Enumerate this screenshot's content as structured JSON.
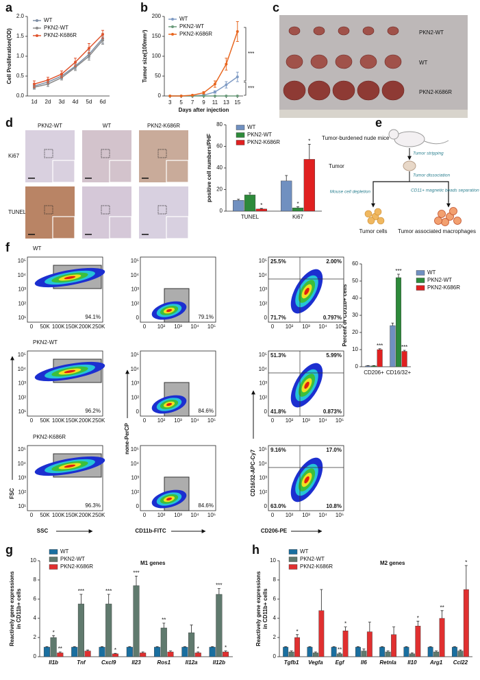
{
  "panels": {
    "letters": [
      "a",
      "b",
      "c",
      "d",
      "e",
      "f",
      "g",
      "h"
    ],
    "c": {
      "labels": [
        "PKN2-WT",
        "WT",
        "PKN2-K686R"
      ]
    },
    "d": {
      "columns": [
        "PKN2-WT",
        "WT",
        "PKN2-K686R"
      ],
      "rows": [
        "Ki67",
        "TUNEL"
      ]
    },
    "e": {
      "mice": "Tumor-burdened nude mice",
      "stripping": "Tumor stripping",
      "tumor": "Tumor",
      "dissociation": "Tumor  dissociation",
      "depletion": "Mouse cell depletion",
      "separation": "CD11+ magnetic beads separation",
      "tumor_cells": "Tumor cells",
      "macrophages": "Tumor associated macrophages"
    },
    "f": {
      "rows": [
        "WT",
        "PKN2-WT",
        "PKN2-K686R"
      ],
      "gate1": [
        "94.1%",
        "96.2%",
        "96.3%"
      ],
      "gate2": [
        "79.1%",
        "84.6%",
        "84.6%"
      ],
      "quadrants": [
        [
          "25.5%",
          "2.00%",
          "71.7%",
          "0.797%"
        ],
        [
          "51.3%",
          "5.99%",
          "41.8%",
          "0.873%"
        ],
        [
          "9.16%",
          "17.0%",
          "63.0%",
          "10.8%"
        ]
      ],
      "axes": {
        "fsc": "FSC",
        "ssc": "SSC",
        "percp": "none-PerCP",
        "fitc": "CD11b-FITC",
        "apc": "CD16/32-APC-Cy7",
        "pe": "CD206-PE"
      },
      "ssc_ticks": [
        "0",
        "50K",
        "100K",
        "150K",
        "200K",
        "250K"
      ],
      "fsc_ticks": [
        "10¹",
        "10²",
        "10³",
        "10⁴",
        "10⁵"
      ],
      "log_ticks": [
        "0",
        "10²",
        "10³",
        "10⁴",
        "10⁵"
      ]
    }
  },
  "chart_data": [
    {
      "type": "line",
      "ylabel": "Cell Proliferation(OD)",
      "categories": [
        "1d",
        "2d",
        "3d",
        "4d",
        "5d",
        "6d"
      ],
      "ylim": [
        0,
        2
      ],
      "yticks": [
        {
          "value": 0,
          "label": "0.0"
        },
        0.5,
        {
          "value": 1,
          "label": "1.0"
        },
        1.5,
        {
          "value": 2,
          "label": "2.0"
        }
      ],
      "series": [
        {
          "name": "WT",
          "color": "#7f8fa6",
          "values": [
            0.25,
            0.35,
            0.5,
            0.75,
            1.05,
            1.45
          ],
          "errors": [
            0.06,
            0.06,
            0.07,
            0.08,
            0.1,
            0.12
          ]
        },
        {
          "name": "PKN2-WT",
          "color": "#8a8a8a",
          "values": [
            0.22,
            0.3,
            0.46,
            0.72,
            1.0,
            1.4
          ],
          "errors": [
            0.05,
            0.06,
            0.06,
            0.08,
            0.1,
            0.1
          ]
        },
        {
          "name": "PKN2-K686R",
          "color": "#e0542e",
          "values": [
            0.3,
            0.4,
            0.55,
            0.85,
            1.2,
            1.55
          ],
          "errors": [
            0.08,
            0.07,
            0.08,
            0.1,
            0.12,
            0.1
          ]
        }
      ]
    },
    {
      "type": "line",
      "ylabel": "Tumor size(100mm³)",
      "xlabel": "Days after injection",
      "x": [
        3,
        5,
        7,
        9,
        11,
        13,
        15
      ],
      "xlim": [
        2,
        16
      ],
      "xticks": [
        3,
        5,
        7,
        9,
        11,
        13,
        15
      ],
      "ylim": [
        0,
        200
      ],
      "yticks": [
        0,
        50,
        100,
        150,
        200
      ],
      "annotations": [
        "***",
        "***"
      ],
      "series": [
        {
          "name": "WT",
          "color": "#7f9bc4",
          "values": [
            0,
            0,
            0,
            2,
            10,
            28,
            48
          ],
          "errors": [
            0,
            0,
            0,
            1,
            3,
            8,
            12
          ]
        },
        {
          "name": "PKN2-WT",
          "color": "#6a9a7a",
          "values": [
            0,
            0,
            0,
            0,
            0,
            0,
            0
          ],
          "errors": [
            0,
            0,
            0,
            0,
            0,
            0,
            0
          ]
        },
        {
          "name": "PKN2-K686R",
          "color": "#e8661f",
          "values": [
            0,
            0,
            2,
            8,
            30,
            80,
            162
          ],
          "errors": [
            0,
            0,
            1,
            3,
            8,
            15,
            25
          ]
        }
      ]
    },
    {
      "type": "bar",
      "ylabel": "positive cell numbers/PHF",
      "categories": [
        "TUNEL",
        "Ki67"
      ],
      "ylim": [
        0,
        80
      ],
      "yticks": [
        0,
        20,
        40,
        60,
        80
      ],
      "series": [
        {
          "name": "WT",
          "color": "#7090c0",
          "values": [
            10,
            28
          ],
          "errors": [
            1,
            5
          ]
        },
        {
          "name": "PKN2-WT",
          "color": "#2d8a3a",
          "values": [
            15,
            3
          ],
          "errors": [
            2,
            1
          ],
          "stars": [
            null,
            "*"
          ]
        },
        {
          "name": "PKN2-K686R",
          "color": "#e02020",
          "values": [
            2,
            48
          ],
          "errors": [
            0.5,
            14
          ],
          "stars": [
            "*",
            "*"
          ]
        }
      ]
    },
    {
      "type": "bar",
      "ylabel": "Percent of CD11b+ cells",
      "categories": [
        "CD206+",
        "CD16/32+"
      ],
      "ylim": [
        0,
        60
      ],
      "yticks": [
        0,
        10,
        20,
        30,
        40,
        50,
        60
      ],
      "series": [
        {
          "name": "WT",
          "color": "#7090c0",
          "values": [
            0.5,
            24
          ],
          "errors": [
            0.2,
            1.5
          ]
        },
        {
          "name": "PKN2-WT",
          "color": "#2d8a3a",
          "values": [
            0.5,
            52
          ],
          "errors": [
            0.2,
            2
          ],
          "stars": [
            null,
            "***"
          ]
        },
        {
          "name": "PKN2-K686R",
          "color": "#e02020",
          "values": [
            10,
            9
          ],
          "errors": [
            0.5,
            0.6
          ],
          "stars": [
            "***",
            "***"
          ]
        }
      ]
    },
    {
      "type": "bar",
      "title": "M1 genes",
      "ylabel": [
        "Reactively gene expressions",
        "in CD11b+ cells"
      ],
      "categories": [
        "Il1b",
        "Tnf",
        "Cxcl9",
        "Il23",
        "Ros1",
        "Il12a",
        "Il12b"
      ],
      "ylim": [
        0,
        10
      ],
      "yticks": [
        0,
        2,
        4,
        6,
        8,
        10
      ],
      "series": [
        {
          "name": "WT",
          "color": "#1a6fa0",
          "values": [
            1,
            1,
            1,
            1,
            1,
            1,
            1
          ],
          "errors": [
            0.05,
            0.05,
            0.05,
            0.05,
            0.05,
            0.05,
            0.05
          ]
        },
        {
          "name": "PKN2-WT",
          "color": "#607a6e",
          "values": [
            2,
            5.5,
            5.5,
            7.4,
            3,
            2.5,
            6.5
          ],
          "errors": [
            0.2,
            1,
            1,
            1,
            0.5,
            0.8,
            0.6
          ],
          "stars": [
            "*",
            "***",
            "***",
            "***",
            "**",
            null,
            "***"
          ]
        },
        {
          "name": "PKN2-K686R",
          "color": "#e03030",
          "values": [
            0.4,
            0.6,
            0.3,
            0.4,
            0.5,
            0.4,
            0.5
          ],
          "errors": [
            0.1,
            0.1,
            0.05,
            0.1,
            0.1,
            0.1,
            0.1
          ],
          "stars": [
            "**",
            null,
            "*",
            null,
            null,
            "*",
            "*"
          ]
        }
      ]
    },
    {
      "type": "bar",
      "title": "M2 genes",
      "ylabel": [
        "Reactively gene expressions",
        "in CD11b+ cells"
      ],
      "categories": [
        "Tgfb1",
        "Vegfa",
        "Egf",
        "Il6",
        "Retnla",
        "Il10",
        "Arg1",
        "Ccl22"
      ],
      "ylim": [
        0,
        10
      ],
      "yticks": [
        0,
        2,
        4,
        6,
        8,
        10
      ],
      "series": [
        {
          "name": "WT",
          "color": "#1a6fa0",
          "values": [
            1,
            1,
            1,
            1,
            1,
            1,
            1,
            1
          ],
          "errors": [
            0.05,
            0.05,
            0.05,
            0.05,
            0.05,
            0.05,
            0.05,
            0.05
          ]
        },
        {
          "name": "PKN2-WT",
          "color": "#607a6e",
          "values": [
            0.5,
            0.4,
            0.3,
            0.6,
            0.5,
            0.3,
            0.5,
            0.6
          ],
          "errors": [
            0.1,
            0.1,
            0.1,
            0.2,
            0.1,
            0.1,
            0.1,
            0.1
          ],
          "stars": [
            null,
            null,
            "**",
            null,
            null,
            null,
            null,
            null
          ]
        },
        {
          "name": "PKN2-K686R",
          "color": "#e03030",
          "values": [
            2,
            4.8,
            2.7,
            2.6,
            2.3,
            3.2,
            4,
            7
          ],
          "errors": [
            0.3,
            2.2,
            0.4,
            1,
            0.8,
            0.5,
            0.8,
            2.5
          ],
          "stars": [
            "*",
            null,
            "*",
            null,
            null,
            "*",
            "**",
            "*"
          ]
        }
      ]
    }
  ]
}
